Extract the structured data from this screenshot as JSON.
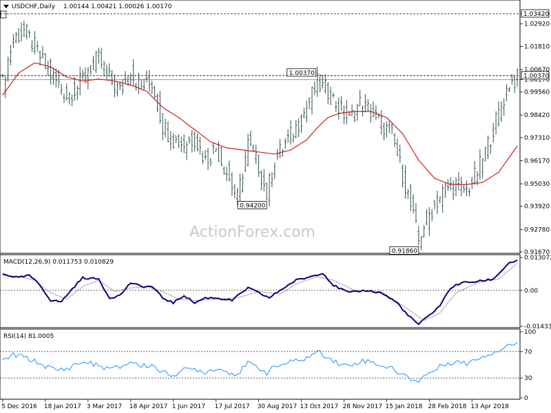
{
  "chart_data": {
    "type": "candlestick",
    "symbol_header": "USDCHF,Daily",
    "ohlc_header": "1.00144 1.00421 1.00026 1.00170",
    "watermark": "ActionForex.com",
    "main_panel": {
      "ylim": [
        0.9167,
        1.0342
      ],
      "y_ticks": [
        "1.03420",
        "1.02920",
        "1.01810",
        "1.00670",
        "1.00170",
        "0.99560",
        "0.98420",
        "0.97310",
        "0.96170",
        "0.95030",
        "0.93920",
        "0.92780",
        "0.91670"
      ],
      "y_tick_values": [
        1.0342,
        1.0292,
        1.0181,
        1.0067,
        1.0017,
        0.9956,
        0.9842,
        0.9731,
        0.9617,
        0.9503,
        0.9392,
        0.9278,
        0.9167
      ],
      "current_price_label": "1.00370",
      "current_price": 1.0037,
      "last_close": 1.0017,
      "top_level": 1.0342,
      "annotations": [
        {
          "label": "1.00370",
          "value": 1.0037,
          "date_index": 118
        },
        {
          "label": "0.94200",
          "value": 0.942,
          "date_index": 99
        },
        {
          "label": "0.91860",
          "value": 0.9186,
          "date_index": 156
        }
      ],
      "price_path": [
        [
          0,
          1.0
        ],
        [
          4,
          1.022
        ],
        [
          8,
          1.026
        ],
        [
          12,
          1.018
        ],
        [
          16,
          1.008
        ],
        [
          20,
          1.001
        ],
        [
          24,
          0.994
        ],
        [
          28,
          0.998
        ],
        [
          32,
          1.007
        ],
        [
          36,
          1.012
        ],
        [
          40,
          1.002
        ],
        [
          44,
          0.996
        ],
        [
          48,
          1.005
        ],
        [
          52,
          0.998
        ],
        [
          56,
          1.0
        ],
        [
          58,
          0.99
        ],
        [
          60,
          0.979
        ],
        [
          64,
          0.972
        ],
        [
          68,
          0.97
        ],
        [
          72,
          0.973
        ],
        [
          76,
          0.962
        ],
        [
          80,
          0.968
        ],
        [
          84,
          0.956
        ],
        [
          88,
          0.943
        ],
        [
          92,
          0.97
        ],
        [
          96,
          0.959
        ],
        [
          99,
          0.945
        ],
        [
          102,
          0.962
        ],
        [
          106,
          0.97
        ],
        [
          110,
          0.978
        ],
        [
          114,
          0.988
        ],
        [
          118,
          1.0
        ],
        [
          122,
          0.996
        ],
        [
          126,
          0.988
        ],
        [
          130,
          0.982
        ],
        [
          134,
          0.99
        ],
        [
          138,
          0.986
        ],
        [
          142,
          0.98
        ],
        [
          146,
          0.974
        ],
        [
          150,
          0.955
        ],
        [
          154,
          0.934
        ],
        [
          156,
          0.922
        ],
        [
          158,
          0.93
        ],
        [
          162,
          0.94
        ],
        [
          166,
          0.948
        ],
        [
          170,
          0.95
        ],
        [
          174,
          0.947
        ],
        [
          178,
          0.956
        ],
        [
          182,
          0.97
        ],
        [
          186,
          0.985
        ],
        [
          190,
          1.0
        ],
        [
          193,
          1.002
        ]
      ],
      "ma_path": [
        [
          0,
          0.994
        ],
        [
          6,
          1.005
        ],
        [
          12,
          1.01
        ],
        [
          18,
          1.008
        ],
        [
          24,
          1.003
        ],
        [
          30,
          1.001
        ],
        [
          36,
          1.002
        ],
        [
          42,
          1.001
        ],
        [
          48,
          0.999
        ],
        [
          54,
          0.996
        ],
        [
          60,
          0.988
        ],
        [
          66,
          0.983
        ],
        [
          72,
          0.977
        ],
        [
          78,
          0.971
        ],
        [
          84,
          0.968
        ],
        [
          90,
          0.967
        ],
        [
          96,
          0.966
        ],
        [
          102,
          0.965
        ],
        [
          108,
          0.967
        ],
        [
          114,
          0.972
        ],
        [
          118,
          0.978
        ],
        [
          122,
          0.983
        ],
        [
          126,
          0.985
        ],
        [
          132,
          0.986
        ],
        [
          138,
          0.986
        ],
        [
          144,
          0.983
        ],
        [
          150,
          0.975
        ],
        [
          156,
          0.962
        ],
        [
          162,
          0.953
        ],
        [
          168,
          0.95
        ],
        [
          174,
          0.95
        ],
        [
          180,
          0.951
        ],
        [
          186,
          0.956
        ],
        [
          193,
          0.969
        ]
      ]
    },
    "macd_panel": {
      "label": "MACD(12,26,9) 0.011753 0.010829",
      "ylim": [
        -0.0143,
        0.0131
      ],
      "y_ticks": [
        "0.013072",
        "0.00",
        "-0.014333"
      ],
      "y_tick_values": [
        0.013072,
        0.0,
        -0.014333
      ],
      "macd_path": [
        [
          0,
          0.0065
        ],
        [
          6,
          0.005
        ],
        [
          10,
          0.006
        ],
        [
          14,
          0.002
        ],
        [
          18,
          -0.004
        ],
        [
          22,
          -0.0045
        ],
        [
          26,
          0.0005
        ],
        [
          30,
          0.005
        ],
        [
          36,
          0.0045
        ],
        [
          40,
          -0.003
        ],
        [
          44,
          -0.002
        ],
        [
          48,
          0.003
        ],
        [
          52,
          0.0015
        ],
        [
          56,
          0.0015
        ],
        [
          60,
          -0.003
        ],
        [
          64,
          -0.005
        ],
        [
          68,
          -0.002
        ],
        [
          72,
          -0.005
        ],
        [
          76,
          -0.003
        ],
        [
          80,
          -0.003
        ],
        [
          86,
          -0.004
        ],
        [
          92,
          0.001
        ],
        [
          96,
          -0.001
        ],
        [
          100,
          -0.003
        ],
        [
          104,
          0.0
        ],
        [
          110,
          0.004
        ],
        [
          114,
          0.005
        ],
        [
          120,
          0.007
        ],
        [
          124,
          0.002
        ],
        [
          130,
          -0.001
        ],
        [
          136,
          0.0
        ],
        [
          142,
          -0.001
        ],
        [
          148,
          -0.005
        ],
        [
          152,
          -0.01
        ],
        [
          156,
          -0.0135
        ],
        [
          160,
          -0.01
        ],
        [
          164,
          -0.006
        ],
        [
          168,
          0.001
        ],
        [
          172,
          0.003
        ],
        [
          178,
          0.0035
        ],
        [
          184,
          0.0045
        ],
        [
          190,
          0.011
        ],
        [
          193,
          0.0118
        ]
      ],
      "signal_path": [
        [
          0,
          0.006
        ],
        [
          6,
          0.0055
        ],
        [
          12,
          0.004
        ],
        [
          18,
          -0.001
        ],
        [
          24,
          -0.0035
        ],
        [
          30,
          0.0015
        ],
        [
          36,
          0.004
        ],
        [
          42,
          -0.0005
        ],
        [
          48,
          0.001
        ],
        [
          54,
          0.0015
        ],
        [
          60,
          -0.0005
        ],
        [
          66,
          -0.0035
        ],
        [
          72,
          -0.004
        ],
        [
          80,
          -0.0035
        ],
        [
          88,
          -0.003
        ],
        [
          96,
          -0.0005
        ],
        [
          104,
          -0.0015
        ],
        [
          110,
          0.0025
        ],
        [
          118,
          0.0055
        ],
        [
          124,
          0.004
        ],
        [
          132,
          0.0
        ],
        [
          142,
          -0.0005
        ],
        [
          150,
          -0.006
        ],
        [
          158,
          -0.012
        ],
        [
          164,
          -0.009
        ],
        [
          170,
          -0.001
        ],
        [
          178,
          0.003
        ],
        [
          186,
          0.0045
        ],
        [
          193,
          0.0108
        ]
      ]
    },
    "rsi_panel": {
      "label": "RSI(14) 81.0005",
      "ylim": [
        0,
        100
      ],
      "y_ticks": [
        "100",
        "70",
        "30",
        "0"
      ],
      "y_tick_values": [
        100,
        70,
        30,
        0
      ],
      "rsi_path": [
        [
          0,
          56
        ],
        [
          4,
          65
        ],
        [
          8,
          62
        ],
        [
          12,
          55
        ],
        [
          16,
          48
        ],
        [
          20,
          42
        ],
        [
          24,
          44
        ],
        [
          28,
          52
        ],
        [
          32,
          54
        ],
        [
          36,
          48
        ],
        [
          40,
          44
        ],
        [
          44,
          46
        ],
        [
          48,
          55
        ],
        [
          52,
          48
        ],
        [
          56,
          50
        ],
        [
          60,
          38
        ],
        [
          64,
          35
        ],
        [
          68,
          42
        ],
        [
          72,
          44
        ],
        [
          76,
          39
        ],
        [
          80,
          45
        ],
        [
          84,
          40
        ],
        [
          88,
          36
        ],
        [
          92,
          52
        ],
        [
          96,
          46
        ],
        [
          99,
          38
        ],
        [
          102,
          47
        ],
        [
          106,
          52
        ],
        [
          110,
          56
        ],
        [
          114,
          60
        ],
        [
          118,
          70
        ],
        [
          122,
          62
        ],
        [
          126,
          52
        ],
        [
          130,
          48
        ],
        [
          134,
          56
        ],
        [
          138,
          55
        ],
        [
          142,
          49
        ],
        [
          146,
          44
        ],
        [
          150,
          35
        ],
        [
          154,
          27
        ],
        [
          156,
          26
        ],
        [
          158,
          33
        ],
        [
          162,
          42
        ],
        [
          166,
          52
        ],
        [
          170,
          55
        ],
        [
          174,
          52
        ],
        [
          178,
          60
        ],
        [
          182,
          66
        ],
        [
          186,
          72
        ],
        [
          190,
          81
        ],
        [
          193,
          81
        ]
      ]
    },
    "x_axis": {
      "labels": [
        "5 Dec 2016",
        "18 Jan 2017",
        "3 Mar 2017",
        "18 Apr 2017",
        "1 Jun 2017",
        "17 Jul 2017",
        "30 Aug 2017",
        "13 Oct 2017",
        "28 Nov 2017",
        "15 Jan 2018",
        "28 Feb 2018",
        "13 Apr 2018"
      ],
      "label_indices": [
        0,
        16,
        32,
        48,
        64,
        80,
        96,
        112,
        128,
        144,
        160,
        176
      ]
    },
    "colors": {
      "candle": "#2f4f4f",
      "ma": "#d01c1c",
      "macd": "#00007f",
      "signal": "#7f7f7f",
      "rsi": "#1e90ff",
      "grid": "#000000",
      "watermark": "#c8c8c8"
    }
  }
}
